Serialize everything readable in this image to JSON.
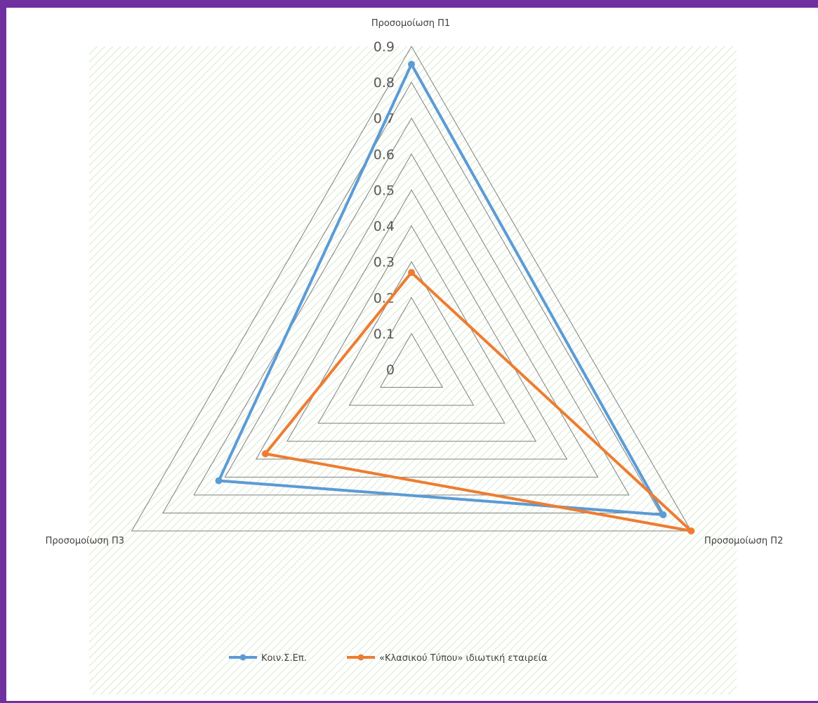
{
  "chart_data": {
    "type": "radar",
    "axes": [
      "Προσομοίωση Π1",
      "Προσομοίωση Π2",
      "Προσομοίωση Π3"
    ],
    "ticks": [
      "0",
      "0.1",
      "0.2",
      "0.3",
      "0.4",
      "0.5",
      "0.6",
      "0.7",
      "0.8",
      "0.9"
    ],
    "range": [
      0,
      0.9
    ],
    "series": [
      {
        "name": "Κοιν.Σ.Επ.",
        "values": [
          0.85,
          0.81,
          0.62
        ],
        "color": "#5b9bd5"
      },
      {
        "name": "«Κλασικού Τύπου» ιδιωτική εταιρεία",
        "values": [
          0.27,
          0.9,
          0.47
        ],
        "color": "#ed7d31"
      }
    ],
    "grid": true,
    "legend": "bottom",
    "colors": {
      "frame": "#7030a0",
      "plot_area_hatch": "#a9d08e",
      "gridline": "#808080"
    }
  }
}
